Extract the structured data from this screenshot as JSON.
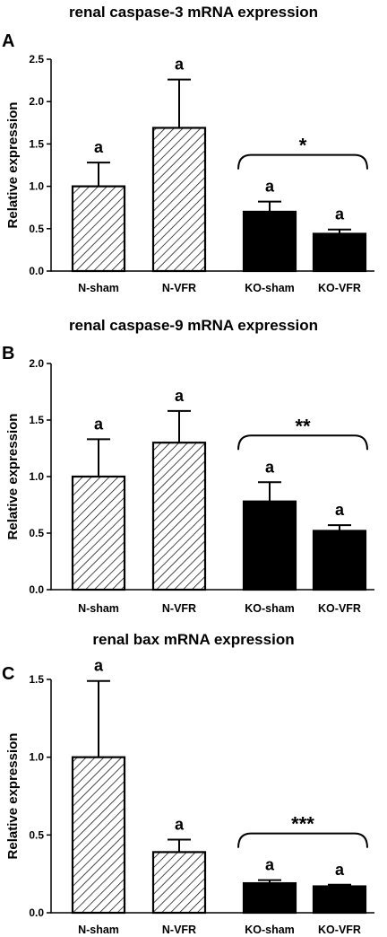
{
  "chart_data": [
    {
      "type": "bar",
      "panel": "A",
      "title": "renal caspase-3 mRNA expression",
      "ylabel": "Relative expression",
      "ylim": [
        0,
        2.5
      ],
      "yticks": [
        "0.0",
        "0.5",
        "1.0",
        "1.5",
        "2.0",
        "2.5"
      ],
      "categories": [
        "N-sham",
        "N-VFR",
        "KO-sham",
        "KO-VFR"
      ],
      "values": [
        1.0,
        1.69,
        0.7,
        0.44
      ],
      "errors": [
        0.28,
        0.57,
        0.12,
        0.05
      ],
      "fills": [
        "hatched",
        "hatched",
        "solid",
        "solid"
      ],
      "labels": [
        "a",
        "a",
        "a",
        "a"
      ],
      "bracket": {
        "from": 2,
        "to": 3,
        "label": "*"
      }
    },
    {
      "type": "bar",
      "panel": "B",
      "title": "renal caspase-9 mRNA expression",
      "ylabel": "Relative expression",
      "ylim": [
        0,
        2.0
      ],
      "yticks": [
        "0.0",
        "0.5",
        "1.0",
        "1.5",
        "2.0"
      ],
      "categories": [
        "N-sham",
        "N-VFR",
        "KO-sham",
        "KO-VFR"
      ],
      "values": [
        1.0,
        1.3,
        0.78,
        0.52
      ],
      "errors": [
        0.33,
        0.28,
        0.17,
        0.05
      ],
      "fills": [
        "hatched",
        "hatched",
        "solid",
        "solid"
      ],
      "labels": [
        "a",
        "a",
        "a",
        "a"
      ],
      "bracket": {
        "from": 2,
        "to": 3,
        "label": "**"
      }
    },
    {
      "type": "bar",
      "panel": "C",
      "title": "renal bax mRNA expression",
      "ylabel": "Relative expression",
      "ylim": [
        0,
        1.5
      ],
      "yticks": [
        "0.0",
        "0.5",
        "1.0",
        "1.5"
      ],
      "categories": [
        "N-sham",
        "N-VFR",
        "KO-sham",
        "KO-VFR"
      ],
      "values": [
        1.0,
        0.39,
        0.19,
        0.17
      ],
      "errors": [
        0.49,
        0.08,
        0.02,
        0.01
      ],
      "fills": [
        "hatched",
        "hatched",
        "solid",
        "solid"
      ],
      "labels": [
        "a",
        "a",
        "a",
        "a"
      ],
      "bracket": {
        "from": 2,
        "to": 3,
        "label": "***"
      }
    }
  ]
}
